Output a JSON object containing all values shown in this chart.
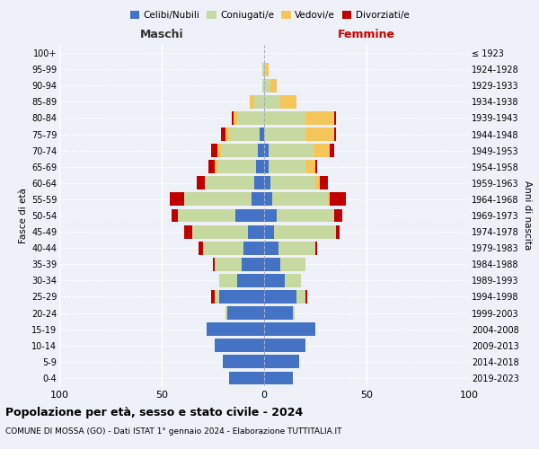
{
  "age_groups": [
    "0-4",
    "5-9",
    "10-14",
    "15-19",
    "20-24",
    "25-29",
    "30-34",
    "35-39",
    "40-44",
    "45-49",
    "50-54",
    "55-59",
    "60-64",
    "65-69",
    "70-74",
    "75-79",
    "80-84",
    "85-89",
    "90-94",
    "95-99",
    "100+"
  ],
  "birth_years": [
    "2019-2023",
    "2014-2018",
    "2009-2013",
    "2004-2008",
    "1999-2003",
    "1994-1998",
    "1989-1993",
    "1984-1988",
    "1979-1983",
    "1974-1978",
    "1969-1973",
    "1964-1968",
    "1959-1963",
    "1954-1958",
    "1949-1953",
    "1944-1948",
    "1939-1943",
    "1934-1938",
    "1929-1933",
    "1924-1928",
    "≤ 1923"
  ],
  "males": {
    "celibi": [
      17,
      20,
      24,
      28,
      18,
      22,
      13,
      11,
      10,
      8,
      14,
      6,
      5,
      4,
      3,
      2,
      0,
      0,
      0,
      0,
      0
    ],
    "coniugati": [
      0,
      0,
      0,
      0,
      1,
      2,
      9,
      13,
      20,
      27,
      28,
      33,
      24,
      19,
      18,
      15,
      13,
      5,
      1,
      1,
      0
    ],
    "vedovi": [
      0,
      0,
      0,
      0,
      0,
      0,
      0,
      0,
      0,
      0,
      0,
      0,
      0,
      1,
      2,
      2,
      2,
      2,
      0,
      0,
      0
    ],
    "divorziati": [
      0,
      0,
      0,
      0,
      0,
      2,
      0,
      1,
      2,
      4,
      3,
      7,
      4,
      3,
      3,
      2,
      1,
      0,
      0,
      0,
      0
    ]
  },
  "females": {
    "nubili": [
      14,
      17,
      20,
      25,
      14,
      16,
      10,
      8,
      7,
      5,
      6,
      4,
      3,
      2,
      2,
      0,
      0,
      0,
      0,
      0,
      0
    ],
    "coniugate": [
      0,
      0,
      0,
      0,
      1,
      4,
      8,
      12,
      18,
      30,
      28,
      27,
      22,
      18,
      22,
      20,
      20,
      8,
      3,
      1,
      0
    ],
    "vedove": [
      0,
      0,
      0,
      0,
      0,
      0,
      0,
      0,
      0,
      0,
      0,
      1,
      2,
      5,
      8,
      14,
      14,
      8,
      3,
      1,
      0
    ],
    "divorziate": [
      0,
      0,
      0,
      0,
      0,
      1,
      0,
      0,
      1,
      2,
      4,
      8,
      4,
      1,
      2,
      1,
      1,
      0,
      0,
      0,
      0
    ]
  },
  "color_celibi": "#4472C4",
  "color_coniugati": "#C5D9A0",
  "color_vedovi": "#F5C55A",
  "color_divorziati": "#C00000",
  "title": "Popolazione per età, sesso e stato civile - 2024",
  "subtitle": "COMUNE DI MOSSA (GO) - Dati ISTAT 1° gennaio 2024 - Elaborazione TUTTITALIA.IT",
  "xlabel_left": "Maschi",
  "xlabel_right": "Femmine",
  "ylabel_left": "Fasce di età",
  "ylabel_right": "Anni di nascita",
  "xlim": 100,
  "bg_color": "#EEF2F8",
  "grid_color": "#FFFFFF"
}
